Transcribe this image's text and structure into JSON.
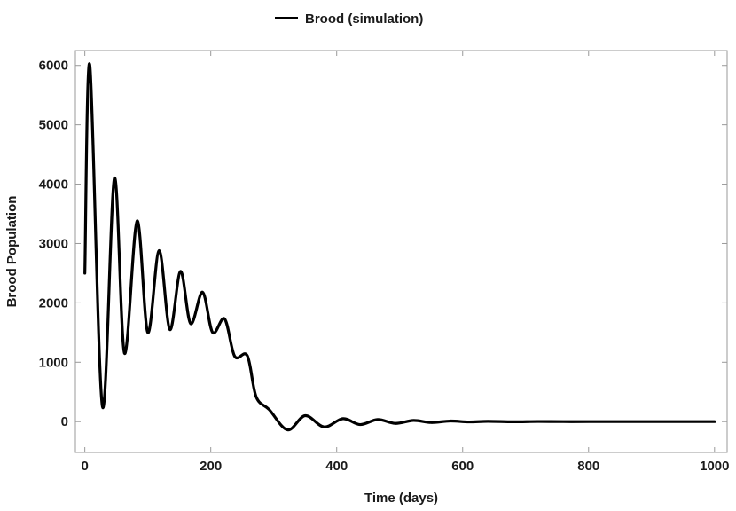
{
  "chart_data": {
    "type": "line",
    "xlabel": "Time (days)",
    "ylabel": "Brood Population",
    "xlim": [
      -15,
      1020
    ],
    "ylim": [
      -520,
      6250
    ],
    "x_ticks": [
      0,
      200,
      400,
      600,
      800,
      1000
    ],
    "y_ticks": [
      0,
      1000,
      2000,
      3000,
      4000,
      5000,
      6000
    ],
    "grid": false,
    "legend_position": "top-center",
    "series": [
      {
        "name": "Brood (simulation)",
        "color": "#000000",
        "x": [
          0,
          8,
          28,
          47,
          63,
          83,
          100,
          118,
          135,
          152,
          168,
          187,
          203,
          222,
          238,
          258,
          272,
          293,
          322,
          350,
          380,
          410,
          437,
          465,
          493,
          522,
          550,
          580,
          610,
          640,
          680,
          720,
          760,
          800,
          850,
          900,
          950,
          1000
        ],
        "y": [
          2500,
          6000,
          250,
          4100,
          1150,
          3380,
          1500,
          2880,
          1550,
          2530,
          1650,
          2180,
          1500,
          1730,
          1100,
          1110,
          420,
          200,
          -140,
          100,
          -90,
          50,
          -50,
          35,
          -30,
          20,
          -15,
          10,
          -5,
          5,
          -3,
          2,
          0,
          0,
          0,
          0,
          0,
          0
        ]
      }
    ]
  }
}
